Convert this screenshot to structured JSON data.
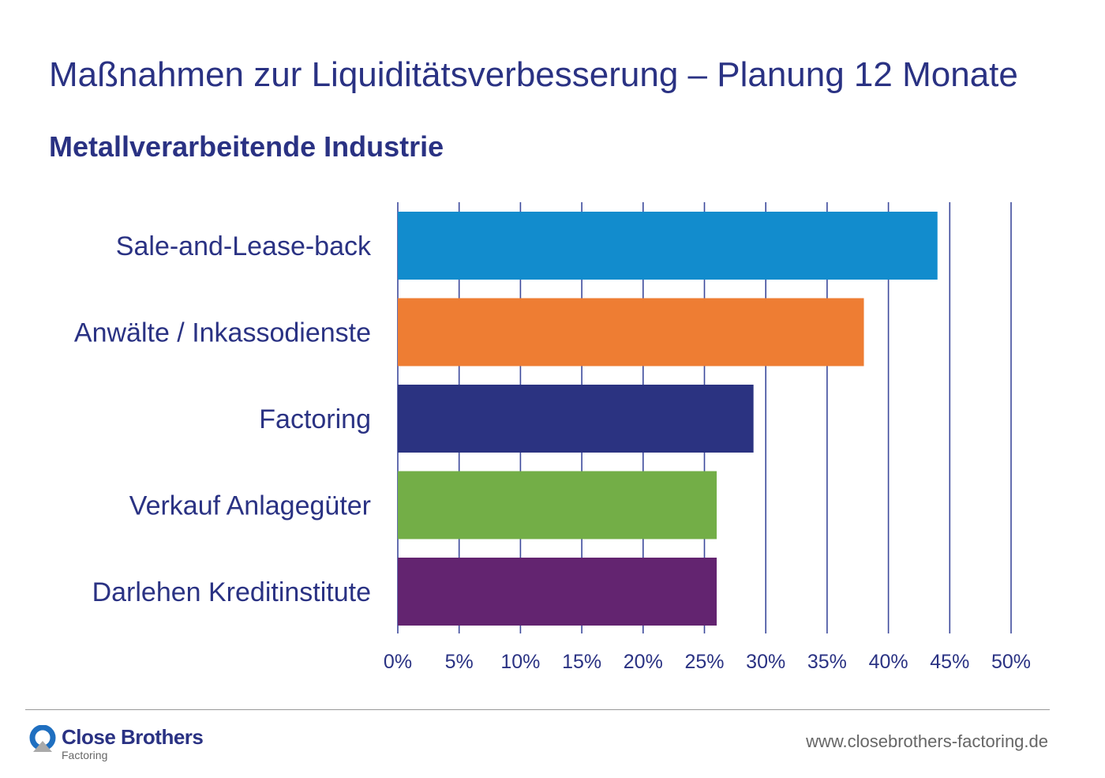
{
  "chart_data": {
    "type": "bar",
    "orientation": "horizontal",
    "title": "Maßnahmen zur Liquiditätsverbesserung – Planung 12 Monate",
    "subtitle": "Metallverarbeitende Industrie",
    "categories": [
      "Sale-and-Lease-back",
      "Anwälte / Inkassodienste",
      "Factoring",
      "Verkauf Anlagegüter",
      "Darlehen Kreditinstitute"
    ],
    "values": [
      44,
      38,
      29,
      26,
      26
    ],
    "colors": [
      "#128ccd",
      "#ee7d33",
      "#2b3381",
      "#73ae47",
      "#632470"
    ],
    "xlim": [
      0,
      50
    ],
    "xticks": [
      "0%",
      "5%",
      "10%",
      "15%",
      "20%",
      "25%",
      "30%",
      "35%",
      "40%",
      "45%",
      "50%"
    ],
    "grid": true,
    "xlabel": "",
    "ylabel": ""
  },
  "footer": {
    "brand": "Close Brothers",
    "brand_sub": "Factoring",
    "url": "www.closebrothers-factoring.de"
  }
}
